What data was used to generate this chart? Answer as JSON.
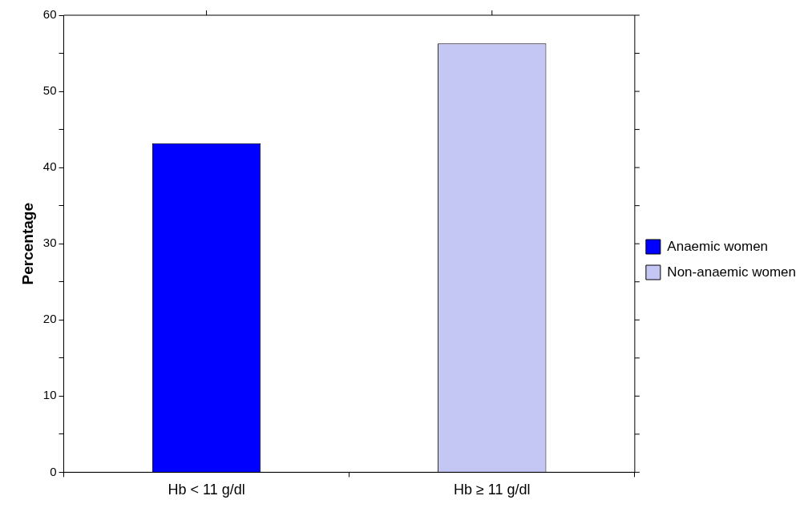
{
  "chart_data": {
    "type": "bar",
    "ylabel": "Percentage",
    "categories": [
      "Hb < 11 g/dl",
      "Hb ≥ 11 g/dl"
    ],
    "series": [
      {
        "name": "Anaemic women",
        "color": "#0000ff",
        "values": [
          43.2,
          null
        ]
      },
      {
        "name": "Non-anaemic women",
        "color": "#c4c6f4",
        "values": [
          null,
          56.3
        ]
      }
    ],
    "ylim": [
      0,
      60
    ],
    "yticks": [
      0,
      {
        "value": 5,
        "label": null
      },
      10,
      {
        "value": 15,
        "label": null
      },
      20,
      {
        "value": 25,
        "label": null
      },
      30,
      {
        "value": 35,
        "label": null
      },
      40,
      {
        "value": 45,
        "label": null
      },
      50,
      {
        "value": 55,
        "label": null
      },
      60
    ],
    "grid": false,
    "legend": "right"
  }
}
